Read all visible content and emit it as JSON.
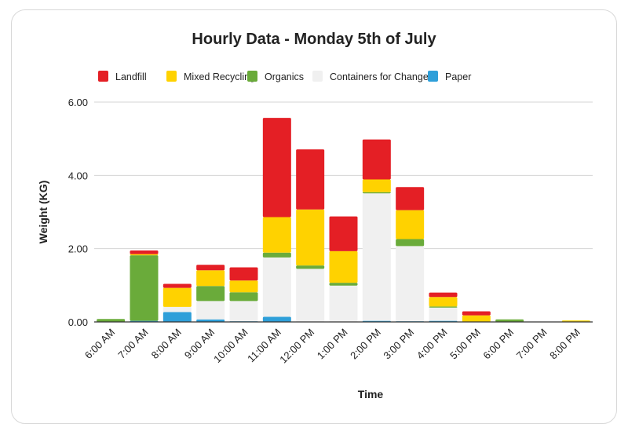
{
  "chart_data": {
    "type": "bar",
    "stacked": true,
    "title": "Hourly Data - Monday 5th of July",
    "xlabel": "Time",
    "ylabel": "Weight (KG)",
    "ylim": [
      0,
      6
    ],
    "yticks": [
      "0.00",
      "2.00",
      "4.00",
      "6.00"
    ],
    "grid": true,
    "legend_position": "top",
    "categories": [
      "6:00 AM",
      "7:00 AM",
      "8:00 AM",
      "9:00 AM",
      "10:00 AM",
      "11:00 AM",
      "12:00 PM",
      "1:00 PM",
      "2:00 PM",
      "3:00 PM",
      "4:00 PM",
      "5:00 PM",
      "6:00 PM",
      "7:00 PM",
      "8:00 PM"
    ],
    "series": [
      {
        "name": "Landfill",
        "color": "#e41f25",
        "values": [
          0,
          0.1,
          0.11,
          0.15,
          0.36,
          2.71,
          1.64,
          0.95,
          1.09,
          0.63,
          0.12,
          0.11,
          0,
          0,
          0
        ]
      },
      {
        "name": "Mixed Recycling",
        "color": "#ffd200",
        "values": [
          0,
          0.03,
          0.52,
          0.43,
          0.32,
          0.97,
          1.53,
          0.86,
          0.35,
          0.79,
          0.26,
          0.18,
          0,
          0,
          0.04
        ]
      },
      {
        "name": "Organics",
        "color": "#6aab3a",
        "values": [
          0.08,
          1.79,
          0,
          0.41,
          0.24,
          0.13,
          0.09,
          0.08,
          0.03,
          0.19,
          0.03,
          0,
          0.07,
          0,
          0
        ]
      },
      {
        "name": "Containers for Change",
        "color": "#f0f0f0",
        "values": [
          0,
          0,
          0.14,
          0.5,
          0.55,
          1.62,
          1.45,
          0.99,
          3.48,
          2.05,
          0.36,
          0,
          0,
          0,
          0
        ]
      },
      {
        "name": "Paper",
        "color": "#2e9fd9",
        "values": [
          0,
          0.03,
          0.27,
          0.07,
          0.02,
          0.14,
          0,
          0,
          0.03,
          0.02,
          0.03,
          0,
          0,
          0,
          0
        ]
      }
    ]
  }
}
